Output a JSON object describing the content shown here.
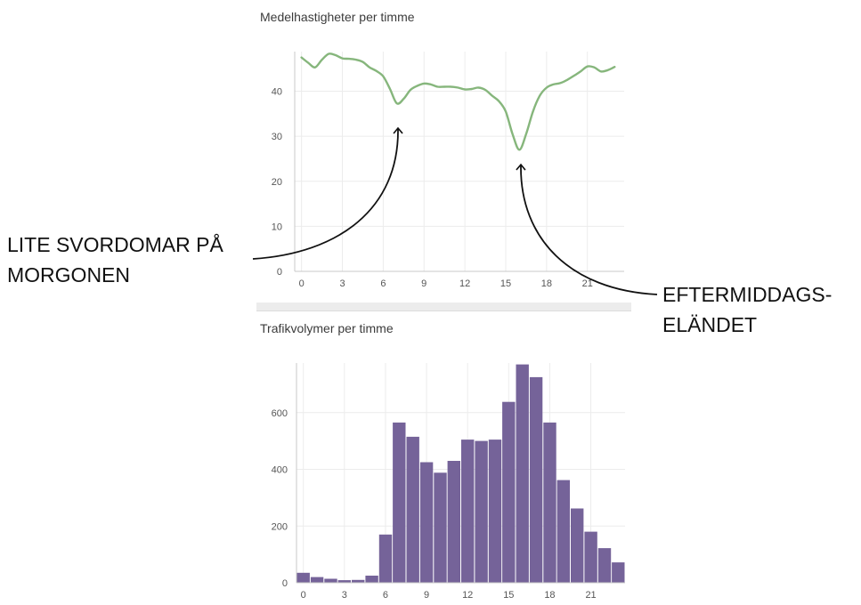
{
  "charts": {
    "speed": {
      "title": "Medelhastigheter per timme"
    },
    "volume": {
      "title": "Trafikvolymer per timme"
    }
  },
  "annotations": {
    "morning": [
      "LITE SVORDOMAR PÅ",
      "MORGONEN"
    ],
    "afternoon": [
      "EFTERMIDDAGS-",
      "ELÄNDET"
    ]
  },
  "colors": {
    "line": "#86b67c",
    "bar": "#756399",
    "grid": "#ececec",
    "axis": "#c8c8c8",
    "tick_text": "#555555",
    "annotation": "#111111"
  },
  "chart_data": [
    {
      "type": "line",
      "title": "Medelhastigheter per timme",
      "xlabel": "",
      "ylabel": "",
      "x": [
        0,
        0.5,
        1,
        1.5,
        2,
        2.5,
        3,
        3.5,
        4,
        4.5,
        5,
        5.5,
        6,
        6.5,
        7,
        7.5,
        8,
        8.5,
        9,
        9.5,
        10,
        10.5,
        11,
        11.5,
        12,
        12.5,
        13,
        13.5,
        14,
        14.5,
        15,
        15.5,
        16,
        16.5,
        17,
        17.5,
        18,
        18.5,
        19,
        19.5,
        20,
        20.5,
        21,
        21.5,
        22,
        22.5,
        23
      ],
      "series": [
        {
          "values": [
            47.5,
            46.3,
            45.3,
            47.0,
            48.3,
            48.0,
            47.3,
            47.2,
            47.0,
            46.5,
            45.3,
            44.5,
            43.3,
            40.5,
            37.3,
            38.3,
            40.3,
            41.2,
            41.7,
            41.5,
            41.0,
            41.0,
            41.0,
            40.8,
            40.4,
            40.5,
            40.8,
            40.3,
            39.0,
            37.8,
            35.5,
            30.5,
            27.0,
            30.5,
            35.5,
            39.0,
            40.8,
            41.5,
            41.8,
            42.5,
            43.4,
            44.4,
            45.5,
            45.3,
            44.4,
            44.7,
            45.4
          ]
        }
      ],
      "xticks": [
        0,
        3,
        6,
        9,
        12,
        15,
        18,
        21
      ],
      "yticks": [
        0,
        10,
        20,
        30,
        40
      ],
      "xlim": [
        -0.5,
        23.7
      ],
      "ylim": [
        0,
        48.8
      ],
      "grid": true
    },
    {
      "type": "bar",
      "title": "Trafikvolymer per timme",
      "xlabel": "",
      "ylabel": "",
      "categories": [
        0,
        1,
        2,
        3,
        4,
        5,
        6,
        7,
        8,
        9,
        10,
        11,
        12,
        13,
        14,
        15,
        16,
        17,
        18,
        19,
        20,
        21,
        22,
        23
      ],
      "values": [
        35,
        20,
        14,
        9,
        10,
        25,
        170,
        565,
        515,
        425,
        388,
        430,
        505,
        500,
        505,
        638,
        770,
        725,
        565,
        362,
        262,
        180,
        122,
        72
      ],
      "xticks": [
        0,
        3,
        6,
        9,
        12,
        15,
        18,
        21
      ],
      "yticks": [
        0,
        200,
        400,
        600
      ],
      "ylim": [
        0,
        775
      ],
      "grid": true
    }
  ]
}
